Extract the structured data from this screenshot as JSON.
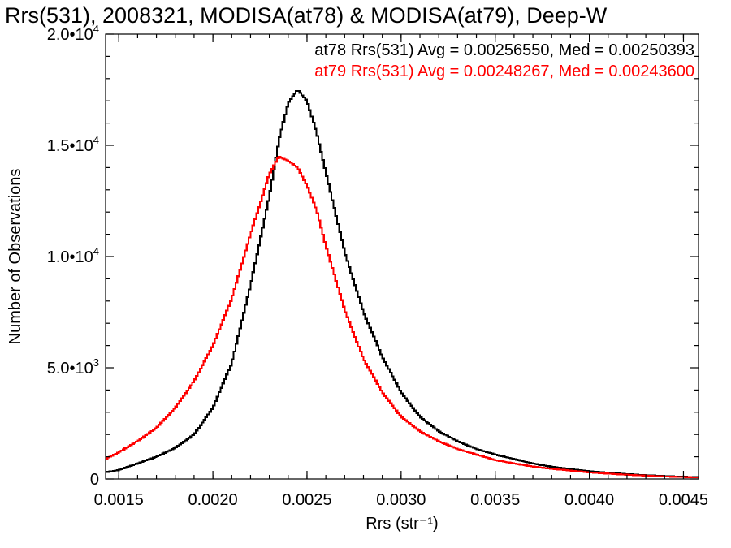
{
  "chart_data": {
    "type": "line",
    "title": "Rrs(531), 2008321, MODISA(at78) & MODISA(at79), Deep-W",
    "xlabel": "Rrs (str⁻¹)",
    "ylabel": "Number of Observations",
    "xlim": [
      0.00143,
      0.00458
    ],
    "ylim": [
      0,
      20000
    ],
    "x_ticks": [
      {
        "value": 0.0015,
        "label": "0.0015"
      },
      {
        "value": 0.002,
        "label": "0.0020"
      },
      {
        "value": 0.0025,
        "label": "0.0025"
      },
      {
        "value": 0.003,
        "label": "0.0030"
      },
      {
        "value": 0.0035,
        "label": "0.0035"
      },
      {
        "value": 0.004,
        "label": "0.0040"
      },
      {
        "value": 0.0045,
        "label": "0.0045"
      }
    ],
    "y_ticks": [
      {
        "value": 0,
        "base": "0",
        "exp": ""
      },
      {
        "value": 5000,
        "base": "5.0•10",
        "exp": "3"
      },
      {
        "value": 10000,
        "base": "1.0•10",
        "exp": "4"
      },
      {
        "value": 15000,
        "base": "1.5•10",
        "exp": "4"
      },
      {
        "value": 20000,
        "base": "2.0•10",
        "exp": "4"
      }
    ],
    "series": [
      {
        "stat_text": "at78 Rrs(531) Avg = 0.00256550, Med = 0.00250393",
        "color": "#000000",
        "x": [
          0.00143,
          0.0015,
          0.0016,
          0.0017,
          0.0018,
          0.0019,
          0.002,
          0.0021,
          0.0022,
          0.0023,
          0.00235,
          0.0024,
          0.00245,
          0.0025,
          0.00255,
          0.0026,
          0.0027,
          0.0028,
          0.0029,
          0.003,
          0.0031,
          0.0032,
          0.0033,
          0.0034,
          0.0035,
          0.0036,
          0.0037,
          0.0038,
          0.0039,
          0.004,
          0.0041,
          0.0042,
          0.0043,
          0.0044,
          0.00458
        ],
        "y": [
          300,
          400,
          700,
          1000,
          1400,
          2000,
          3200,
          5200,
          8700,
          12700,
          15200,
          16900,
          17500,
          17000,
          15600,
          13800,
          10200,
          7500,
          5500,
          3900,
          2800,
          2150,
          1700,
          1350,
          1100,
          900,
          700,
          550,
          450,
          350,
          280,
          220,
          170,
          130,
          80
        ]
      },
      {
        "stat_text": "at79 Rrs(531) Avg = 0.00248267, Med = 0.00243600",
        "color": "#ff0000",
        "x": [
          0.00143,
          0.0015,
          0.0016,
          0.0017,
          0.0018,
          0.0019,
          0.002,
          0.0021,
          0.0022,
          0.0023,
          0.00235,
          0.0024,
          0.00245,
          0.0025,
          0.00255,
          0.0026,
          0.0027,
          0.0028,
          0.0029,
          0.003,
          0.0031,
          0.0032,
          0.0033,
          0.0034,
          0.0035,
          0.0036,
          0.0037,
          0.0038,
          0.0039,
          0.004,
          0.0041,
          0.0042,
          0.0043,
          0.0044,
          0.00458
        ],
        "y": [
          900,
          1200,
          1700,
          2300,
          3200,
          4400,
          6000,
          8100,
          11000,
          13700,
          14500,
          14300,
          14000,
          13200,
          12100,
          10500,
          7600,
          5400,
          3900,
          2800,
          2150,
          1700,
          1350,
          1100,
          850,
          700,
          560,
          460,
          380,
          300,
          240,
          190,
          150,
          110,
          70
        ]
      }
    ],
    "grid": false,
    "legend": "top-right"
  }
}
